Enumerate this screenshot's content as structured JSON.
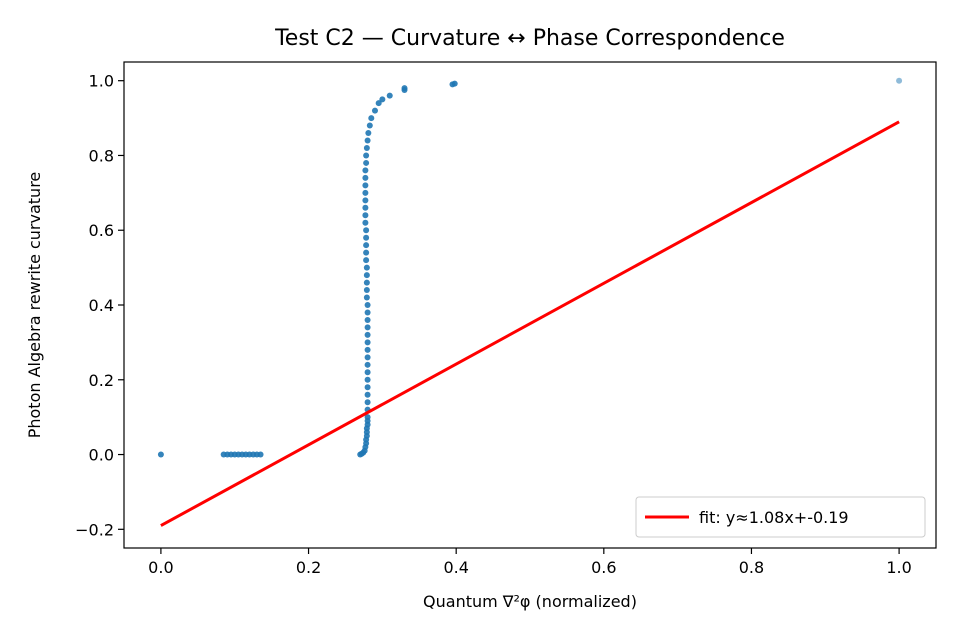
{
  "chart_data": {
    "type": "scatter",
    "title": "Test C2 — Curvature ↔ Phase Correspondence",
    "xlabel": "Quantum ∇²φ (normalized)",
    "ylabel": "Photon Algebra rewrite curvature",
    "xlim": [
      -0.05,
      1.05
    ],
    "ylim": [
      -0.25,
      1.05
    ],
    "xticks": [
      0.0,
      0.2,
      0.4,
      0.6,
      0.8,
      1.0
    ],
    "xtick_labels": [
      "0.0",
      "0.2",
      "0.4",
      "0.6",
      "0.8",
      "1.0"
    ],
    "yticks": [
      -0.2,
      0.0,
      0.2,
      0.4,
      0.6,
      0.8,
      1.0
    ],
    "ytick_labels": [
      "−0.2",
      "0.0",
      "0.2",
      "0.4",
      "0.6",
      "0.8",
      "1.0"
    ],
    "grid": false,
    "legend_position": "lower-right",
    "series": [
      {
        "kind": "scatter",
        "color": "#1f77b4",
        "points": [
          [
            0.0,
            0.0
          ],
          [
            0.085,
            0.0
          ],
          [
            0.09,
            0.0
          ],
          [
            0.095,
            0.0
          ],
          [
            0.1,
            0.0
          ],
          [
            0.105,
            0.0
          ],
          [
            0.11,
            0.0
          ],
          [
            0.115,
            0.0
          ],
          [
            0.12,
            0.0
          ],
          [
            0.125,
            0.0
          ],
          [
            0.13,
            0.0
          ],
          [
            0.135,
            0.0
          ],
          [
            0.27,
            0.0
          ],
          [
            0.272,
            0.002
          ],
          [
            0.274,
            0.005
          ],
          [
            0.276,
            0.01
          ],
          [
            0.277,
            0.02
          ],
          [
            0.278,
            0.03
          ],
          [
            0.278,
            0.04
          ],
          [
            0.279,
            0.05
          ],
          [
            0.279,
            0.06
          ],
          [
            0.279,
            0.07
          ],
          [
            0.28,
            0.08
          ],
          [
            0.28,
            0.09
          ],
          [
            0.28,
            0.1
          ],
          [
            0.28,
            0.12
          ],
          [
            0.28,
            0.14
          ],
          [
            0.28,
            0.16
          ],
          [
            0.28,
            0.18
          ],
          [
            0.28,
            0.2
          ],
          [
            0.28,
            0.22
          ],
          [
            0.28,
            0.24
          ],
          [
            0.28,
            0.26
          ],
          [
            0.28,
            0.28
          ],
          [
            0.28,
            0.3
          ],
          [
            0.28,
            0.32
          ],
          [
            0.28,
            0.34
          ],
          [
            0.28,
            0.36
          ],
          [
            0.28,
            0.38
          ],
          [
            0.28,
            0.4
          ],
          [
            0.279,
            0.42
          ],
          [
            0.279,
            0.44
          ],
          [
            0.279,
            0.46
          ],
          [
            0.279,
            0.48
          ],
          [
            0.279,
            0.5
          ],
          [
            0.278,
            0.52
          ],
          [
            0.278,
            0.54
          ],
          [
            0.278,
            0.56
          ],
          [
            0.278,
            0.58
          ],
          [
            0.278,
            0.6
          ],
          [
            0.277,
            0.62
          ],
          [
            0.277,
            0.64
          ],
          [
            0.277,
            0.66
          ],
          [
            0.277,
            0.68
          ],
          [
            0.277,
            0.7
          ],
          [
            0.277,
            0.72
          ],
          [
            0.277,
            0.74
          ],
          [
            0.277,
            0.76
          ],
          [
            0.278,
            0.78
          ],
          [
            0.278,
            0.8
          ],
          [
            0.279,
            0.82
          ],
          [
            0.28,
            0.84
          ],
          [
            0.281,
            0.86
          ],
          [
            0.283,
            0.88
          ],
          [
            0.285,
            0.9
          ],
          [
            0.29,
            0.92
          ],
          [
            0.295,
            0.94
          ],
          [
            0.3,
            0.95
          ],
          [
            0.31,
            0.96
          ],
          [
            0.33,
            0.975
          ],
          [
            0.33,
            0.98
          ],
          [
            0.395,
            0.99
          ],
          [
            0.398,
            0.992
          ],
          [
            1.0,
            1.0
          ]
        ]
      }
    ],
    "fit_line": {
      "label": "fit: y≈1.08x+-0.19",
      "color": "#ff0000",
      "slope": 1.08,
      "intercept": -0.19,
      "x_range": [
        0.0,
        1.0
      ]
    }
  }
}
